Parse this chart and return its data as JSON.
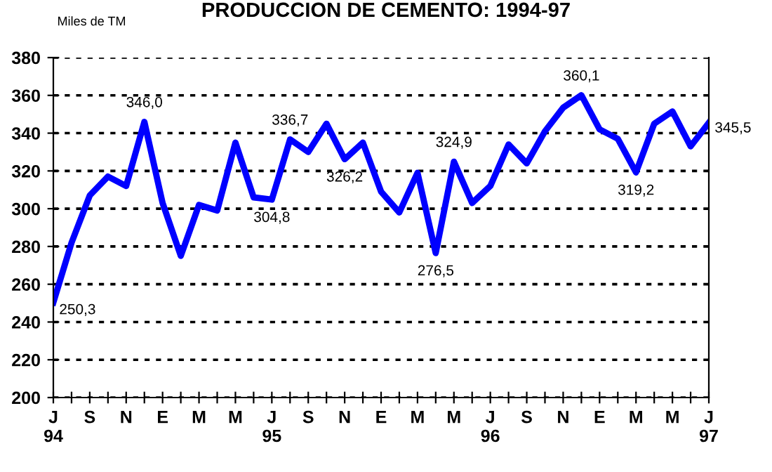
{
  "chart_data": {
    "type": "line",
    "title": "PRODUCCION DE CEMENTO: 1994-97",
    "ylabel": "Miles de TM",
    "categories": [
      "J\n94",
      null,
      "S",
      null,
      "N",
      null,
      "E",
      null,
      "M",
      null,
      "M",
      null,
      "J\n95",
      null,
      "S",
      null,
      "N",
      null,
      "E",
      null,
      "M",
      null,
      "M",
      null,
      "J\n96",
      null,
      "S",
      null,
      "N",
      null,
      "E",
      null,
      "M",
      null,
      "M",
      null,
      "J\n97"
    ],
    "series": [
      {
        "color": "#0000ff",
        "values": [
          250.3,
          282,
          307,
          317,
          312,
          346.0,
          303,
          275,
          302,
          299,
          335,
          306,
          304.8,
          336.7,
          330,
          345,
          326.2,
          335,
          309,
          298,
          319,
          276.5,
          324.9,
          303,
          312,
          334,
          324,
          341,
          353.5,
          360.1,
          342,
          337,
          319.2,
          345,
          351.5,
          333,
          345.5
        ],
        "value_labels": [
          "250,3",
          null,
          null,
          null,
          null,
          "346,0",
          null,
          null,
          null,
          null,
          null,
          null,
          "304,8",
          "336,7",
          null,
          null,
          "326,2",
          null,
          null,
          null,
          null,
          "276,5",
          "324,9",
          null,
          null,
          null,
          null,
          null,
          null,
          "360,1",
          null,
          null,
          "319,2",
          null,
          null,
          null,
          "345,5"
        ]
      }
    ],
    "ylim": [
      200,
      380
    ],
    "yticks": [
      200,
      220,
      240,
      260,
      280,
      300,
      320,
      340,
      360,
      380
    ],
    "grid": "y",
    "legend": false,
    "marker": "none",
    "line_style": "solid"
  }
}
